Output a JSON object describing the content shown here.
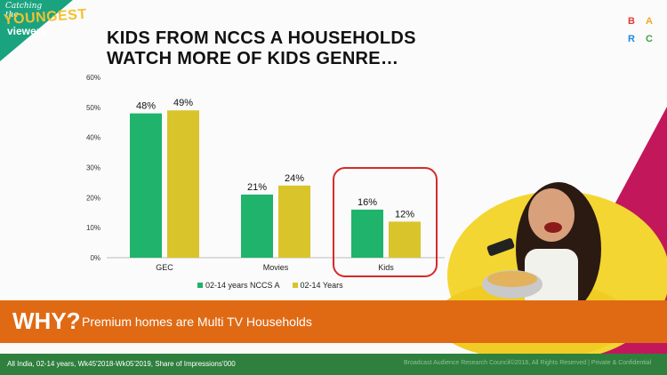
{
  "brand": {
    "tag_line1": "Catching the",
    "tag_line2": "YOUNGEST",
    "tag_line3": "viewers",
    "barc_letters": [
      "B",
      "A",
      "R",
      "C"
    ],
    "barc_colors": [
      "#e53935",
      "#f2a825",
      "#1e88e5",
      "#43a047"
    ]
  },
  "title": {
    "line1": "KIDS FROM NCCS A HOUSEHOLDS",
    "line2": "WATCH MORE OF KIDS GENRE…"
  },
  "chart_data": {
    "type": "bar",
    "categories": [
      "GEC",
      "Movies",
      "Kids"
    ],
    "series": [
      {
        "name": "02-14 years NCCS A",
        "values": [
          48,
          21,
          16
        ],
        "labels": [
          "48%",
          "21%",
          "16%"
        ],
        "color": "#1fb36b"
      },
      {
        "name": "02-14 Years",
        "values": [
          49,
          24,
          12
        ],
        "labels": [
          "49%",
          "24%",
          "12%"
        ],
        "color": "#d9c42b"
      }
    ],
    "ytick_labels": [
      "0%",
      "10%",
      "20%",
      "30%",
      "40%",
      "50%",
      "60%"
    ],
    "ylim": [
      0,
      60
    ],
    "xlabel": "",
    "ylabel": "",
    "grid": false,
    "legend": "bottom",
    "highlighted_category": "Kids"
  },
  "banner": {
    "why": "WHY?",
    "text": "Premium homes are Multi TV Households",
    "color": "#e06a14"
  },
  "footer": {
    "left": "All India, 02-14 years, Wk45'2018-Wk05'2019, Share of Impressions'000",
    "right": "Broadcast Audience Research Council©2018, All Rights Reserved  |  Private & Confidential",
    "color": "#2f7f3d"
  }
}
